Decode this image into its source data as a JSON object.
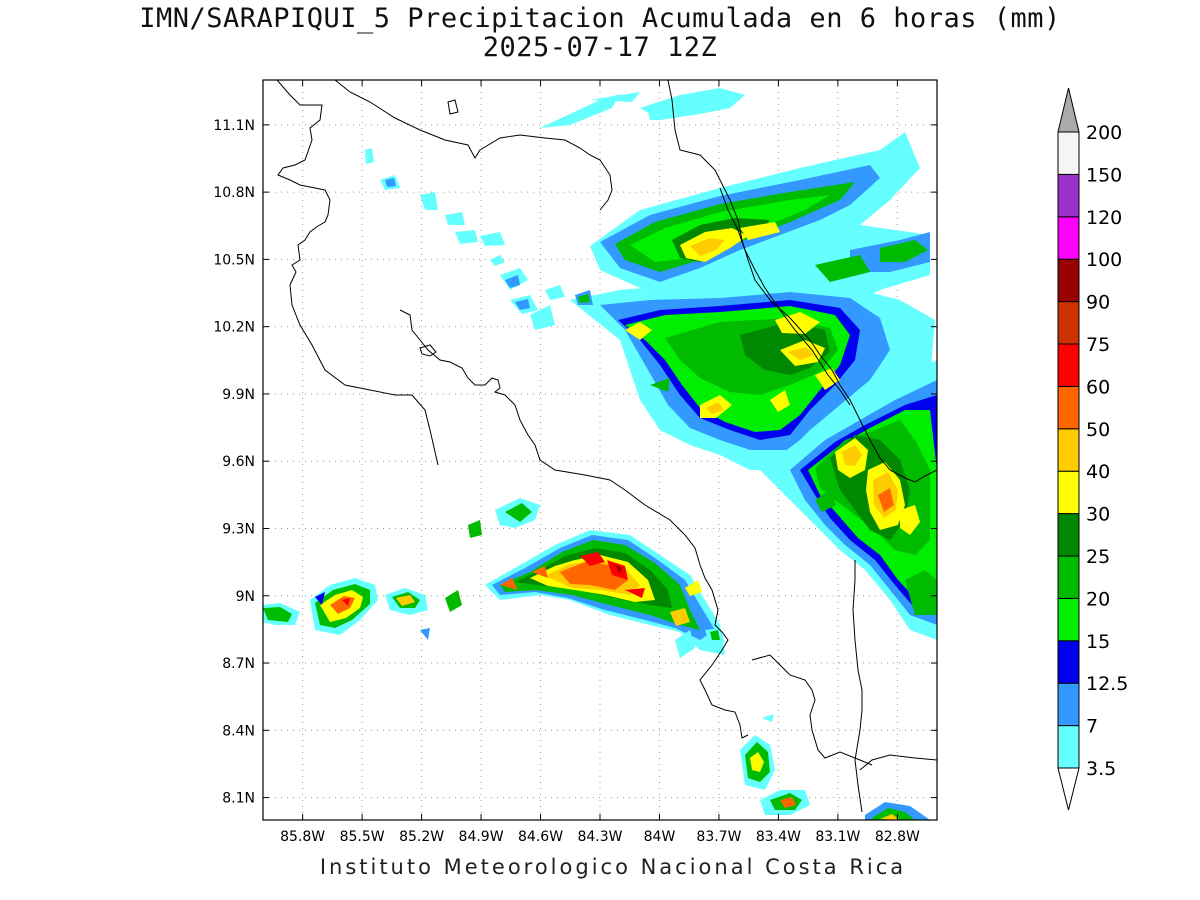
{
  "title_line1": "IMN/SARAPIQUI_5 Precipitacion Acumulada en 6 horas (mm)",
  "title_line2": "2025-07-17 12Z",
  "footer": "Instituto Meteorologico Nacional Costa Rica",
  "map": {
    "lon_range": [
      -86.0,
      -82.6
    ],
    "lat_range": [
      8.0,
      11.3
    ],
    "lon_ticks": [
      "85.8W",
      "85.5W",
      "85.2W",
      "84.9W",
      "84.6W",
      "84.3W",
      "84W",
      "83.7W",
      "83.4W",
      "83.1W",
      "82.8W"
    ],
    "lon_tick_values": [
      -85.8,
      -85.5,
      -85.2,
      -84.9,
      -84.6,
      -84.3,
      -84.0,
      -83.7,
      -83.4,
      -83.1,
      -82.8
    ],
    "lat_ticks": [
      "11.1N",
      "10.8N",
      "10.5N",
      "10.2N",
      "9.9N",
      "9.6N",
      "9.3N",
      "9N",
      "8.7N",
      "8.4N",
      "8.1N"
    ],
    "lat_tick_values": [
      11.1,
      10.8,
      10.5,
      10.2,
      9.9,
      9.6,
      9.3,
      9.0,
      8.7,
      8.4,
      8.1
    ],
    "grid": true
  },
  "colorbar": {
    "labels": [
      "3.5",
      "7",
      "12.5",
      "15",
      "20",
      "25",
      "30",
      "40",
      "50",
      "60",
      "75",
      "90",
      "100",
      "120",
      "150",
      "200"
    ],
    "colors": [
      "#ffffff",
      "#66ffff",
      "#3399ff",
      "#0000ee",
      "#00ee00",
      "#00bb00",
      "#008800",
      "#ffff00",
      "#ffcc00",
      "#ff6600",
      "#ff0000",
      "#cc3300",
      "#990000",
      "#ff00ff",
      "#9933cc",
      "#f5f5f5",
      "#aaaaaa"
    ]
  }
}
